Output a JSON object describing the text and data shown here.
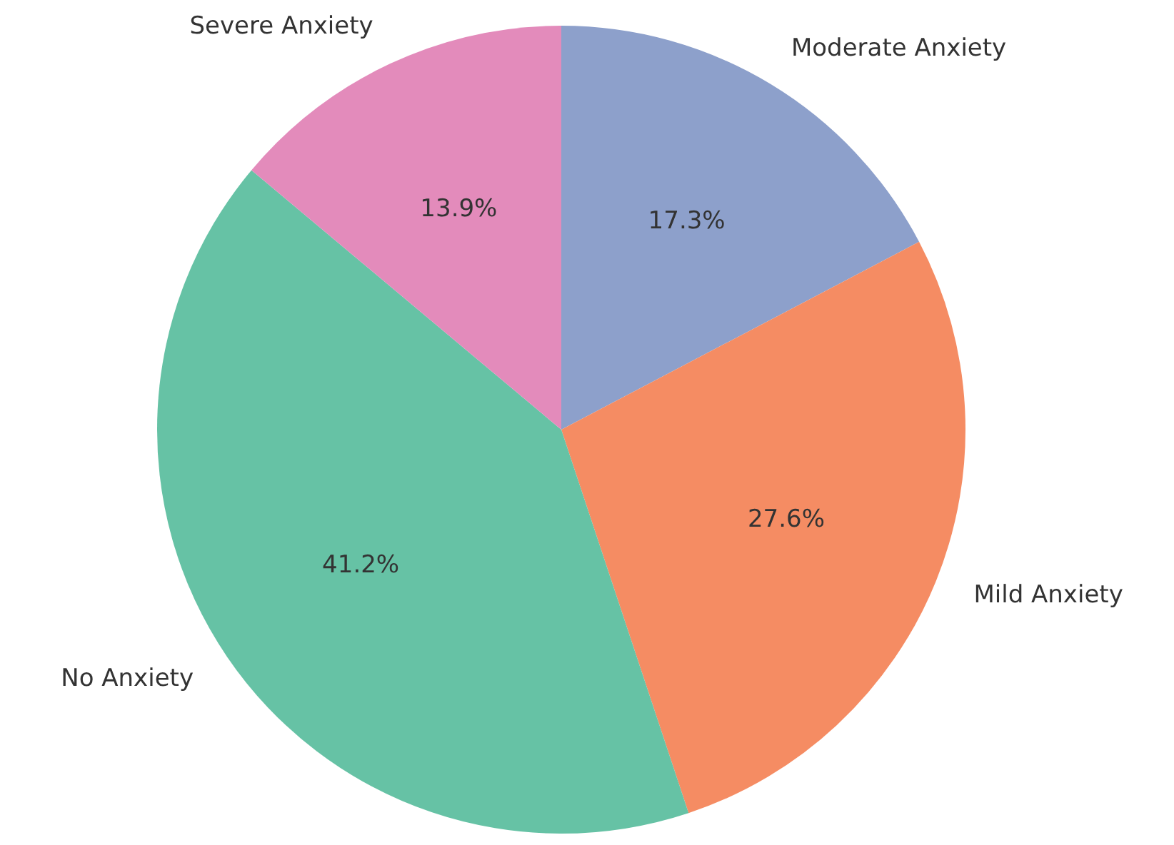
{
  "chart_data": {
    "type": "pie",
    "categories": [
      "Moderate Anxiety",
      "Mild Anxiety",
      "No Anxiety",
      "Severe Anxiety"
    ],
    "values": [
      17.3,
      27.6,
      41.2,
      13.9
    ],
    "colors": [
      "#8da0cb",
      "#f58c63",
      "#66c2a5",
      "#e38bbb"
    ],
    "value_labels": [
      "17.3%",
      "27.6%",
      "41.2%",
      "13.9%"
    ],
    "legend": false
  }
}
